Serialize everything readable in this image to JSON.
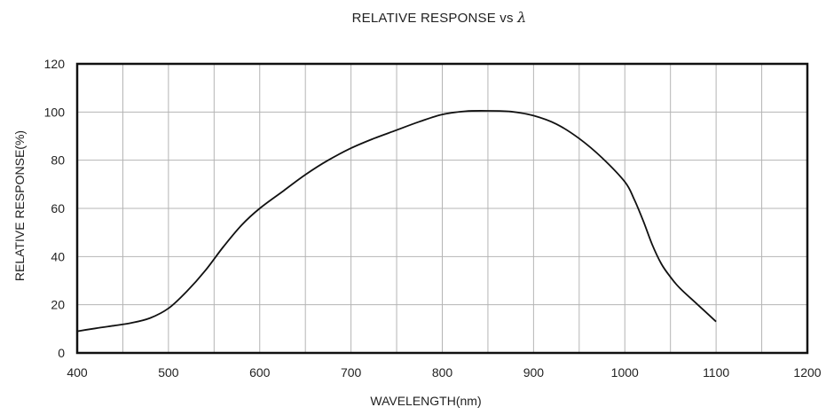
{
  "chart_data": {
    "type": "line",
    "title": "RELATIVE RESPONSE vs",
    "title_symbol": "λ",
    "xlabel": "WAVELENGTH(nm)",
    "ylabel": "RELATIVE RESPONSE(%)",
    "xlim": [
      400,
      1200
    ],
    "ylim": [
      0,
      120
    ],
    "x_ticks": [
      400,
      500,
      600,
      700,
      800,
      900,
      1000,
      1100,
      1200
    ],
    "y_ticks": [
      0,
      20,
      40,
      60,
      80,
      100,
      120
    ],
    "x_grid_step": 50,
    "y_grid_step": 20,
    "grid": true,
    "line_color": "#111111",
    "grid_color": "#b4b4b4",
    "series": [
      {
        "x": [
          400,
          420,
          440,
          460,
          480,
          500,
          520,
          540,
          560,
          580,
          600,
          625,
          650,
          675,
          700,
          725,
          750,
          775,
          800,
          825,
          850,
          875,
          900,
          925,
          950,
          975,
          1000,
          1010,
          1020,
          1030,
          1040,
          1050,
          1060,
          1080,
          1100
        ],
        "y": [
          9,
          10.2,
          11.3,
          12.5,
          14.5,
          18.5,
          25.5,
          34,
          44,
          53,
          60,
          67,
          74,
          80,
          85,
          89,
          92.5,
          96,
          99,
          100.3,
          100.5,
          100.2,
          98.5,
          95,
          89,
          81,
          71,
          64,
          55,
          45,
          37,
          31.5,
          27,
          20,
          13
        ]
      }
    ]
  }
}
